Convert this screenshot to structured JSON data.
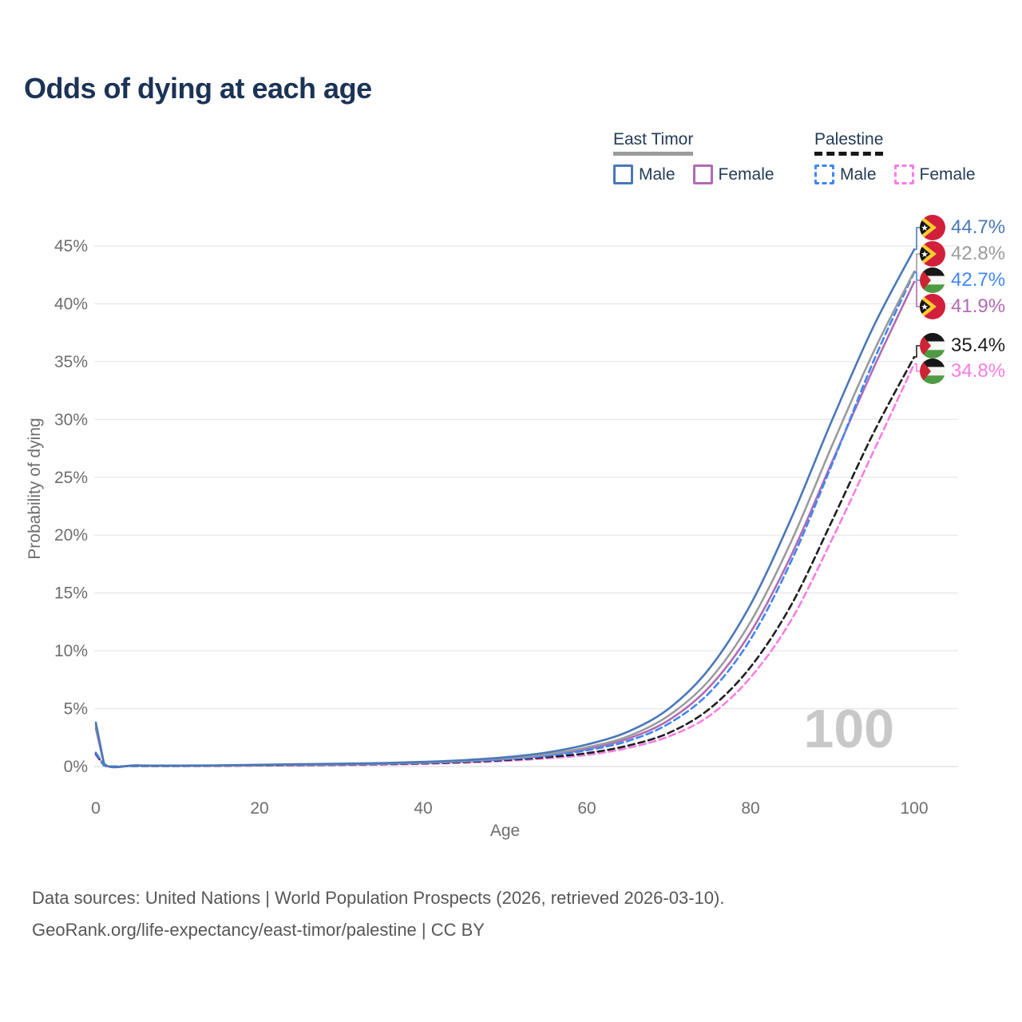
{
  "title": "Odds of dying at each age",
  "watermark_age": "100",
  "legend": {
    "groups": [
      {
        "label": "East Timor",
        "line_style": "solid",
        "line_color": "#9b9b9b",
        "items": [
          {
            "label": "Male",
            "color": "#4a78b9"
          },
          {
            "label": "Female",
            "color": "#b16bb3"
          }
        ]
      },
      {
        "label": "Palestine",
        "line_style": "dashed",
        "line_color": "#1f1f1f",
        "items": [
          {
            "label": "Male",
            "color": "#3f87f5"
          },
          {
            "label": "Female",
            "color": "#fb7ce3"
          }
        ]
      }
    ]
  },
  "axes": {
    "x": {
      "title": "Age",
      "ticks": [
        0,
        20,
        40,
        60,
        80,
        100
      ],
      "range": [
        0,
        100
      ]
    },
    "y": {
      "title": "Probability of dying",
      "ticks": [
        "0%",
        "5%",
        "10%",
        "15%",
        "20%",
        "25%",
        "30%",
        "35%",
        "40%",
        "45%"
      ],
      "range_percent": [
        0,
        45
      ],
      "grid": "horizontal"
    }
  },
  "end_labels": [
    {
      "value": "44.7%",
      "country": "East Timor",
      "sex": "Male",
      "color": "#4a78b9"
    },
    {
      "value": "42.8%",
      "country": "East Timor",
      "sex": "Both sexes",
      "color": "#9b9b9b"
    },
    {
      "value": "42.7%",
      "country": "Palestine",
      "sex": "Male",
      "color": "#3f87f5"
    },
    {
      "value": "41.9%",
      "country": "East Timor",
      "sex": "Female",
      "color": "#b16bb3"
    },
    {
      "value": "35.4%",
      "country": "Palestine",
      "sex": "Both sexes",
      "color": "#1f1f1f"
    },
    {
      "value": "34.8%",
      "country": "Palestine",
      "sex": "Female",
      "color": "#fb7ce3"
    }
  ],
  "chart_data": {
    "type": "line",
    "title": "Odds of dying at each age",
    "xlabel": "Age",
    "ylabel": "Probability of dying",
    "x_range": [
      0,
      100
    ],
    "y_range_percent": [
      0,
      45
    ],
    "grid": "horizontal",
    "legend_position": "top-right",
    "x": [
      0,
      1,
      5,
      10,
      15,
      20,
      25,
      30,
      35,
      40,
      45,
      50,
      55,
      60,
      65,
      70,
      75,
      80,
      85,
      90,
      95,
      100
    ],
    "series": [
      {
        "name": "East Timor Male",
        "country": "East Timor",
        "sex": "Male",
        "color": "#4a78b9",
        "dashed": false,
        "end_value_percent": 44.7,
        "values": [
          3.8,
          0.25,
          0.1,
          0.08,
          0.1,
          0.15,
          0.2,
          0.25,
          0.3,
          0.4,
          0.55,
          0.8,
          1.2,
          1.9,
          3.0,
          5.0,
          8.5,
          14.0,
          21.5,
          30.0,
          38.0,
          44.7
        ]
      },
      {
        "name": "East Timor Both sexes",
        "country": "East Timor",
        "sex": "Both sexes",
        "color": "#9b9b9b",
        "dashed": false,
        "end_value_percent": 42.8,
        "values": [
          3.55,
          0.23,
          0.09,
          0.07,
          0.09,
          0.13,
          0.17,
          0.22,
          0.27,
          0.36,
          0.5,
          0.72,
          1.05,
          1.65,
          2.6,
          4.4,
          7.5,
          12.5,
          19.5,
          27.8,
          35.8,
          42.8
        ]
      },
      {
        "name": "Palestine Male",
        "country": "Palestine",
        "sex": "Male",
        "color": "#3f87f5",
        "dashed": true,
        "end_value_percent": 42.7,
        "values": [
          1.2,
          0.1,
          0.05,
          0.05,
          0.08,
          0.12,
          0.15,
          0.19,
          0.24,
          0.32,
          0.44,
          0.62,
          0.92,
          1.4,
          2.2,
          3.7,
          6.4,
          11.0,
          17.8,
          26.2,
          35.0,
          42.7
        ]
      },
      {
        "name": "East Timor Female",
        "country": "East Timor",
        "sex": "Female",
        "color": "#b16bb3",
        "dashed": false,
        "end_value_percent": 41.9,
        "values": [
          3.3,
          0.21,
          0.08,
          0.06,
          0.08,
          0.11,
          0.14,
          0.18,
          0.23,
          0.31,
          0.44,
          0.64,
          0.95,
          1.5,
          2.4,
          4.0,
          6.9,
          11.6,
          18.3,
          26.4,
          34.4,
          41.9
        ]
      },
      {
        "name": "Palestine Both sexes",
        "country": "Palestine",
        "sex": "Both sexes",
        "color": "#1f1f1f",
        "dashed": true,
        "end_value_percent": 35.4,
        "values": [
          1.1,
          0.09,
          0.04,
          0.04,
          0.06,
          0.09,
          0.12,
          0.15,
          0.2,
          0.27,
          0.38,
          0.55,
          0.8,
          1.15,
          1.8,
          2.9,
          5.0,
          8.6,
          14.0,
          21.3,
          28.8,
          35.4
        ]
      },
      {
        "name": "Palestine Female",
        "country": "Palestine",
        "sex": "Female",
        "color": "#fb7ce3",
        "dashed": true,
        "end_value_percent": 34.8,
        "values": [
          1.0,
          0.08,
          0.04,
          0.04,
          0.05,
          0.08,
          0.1,
          0.13,
          0.17,
          0.23,
          0.33,
          0.48,
          0.7,
          1.0,
          1.6,
          2.6,
          4.4,
          7.7,
          12.7,
          19.7,
          27.2,
          34.8
        ]
      }
    ]
  },
  "footer": {
    "line1": "Data sources: United Nations | World Population Prospects (2026, retrieved 2026-03-10).",
    "line2": "GeoRank.org/life-expectancy/east-timor/palestine | CC BY"
  }
}
